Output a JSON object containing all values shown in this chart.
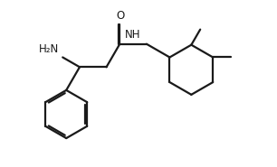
{
  "bg_color": "#ffffff",
  "line_color": "#1a1a1a",
  "text_color": "#1a1a1a",
  "line_width": 1.6,
  "font_size": 8.5,
  "figsize": [
    3.06,
    1.85
  ],
  "dpi": 100,
  "xlim": [
    0.0,
    3.06
  ],
  "ylim": [
    0.0,
    1.85
  ]
}
